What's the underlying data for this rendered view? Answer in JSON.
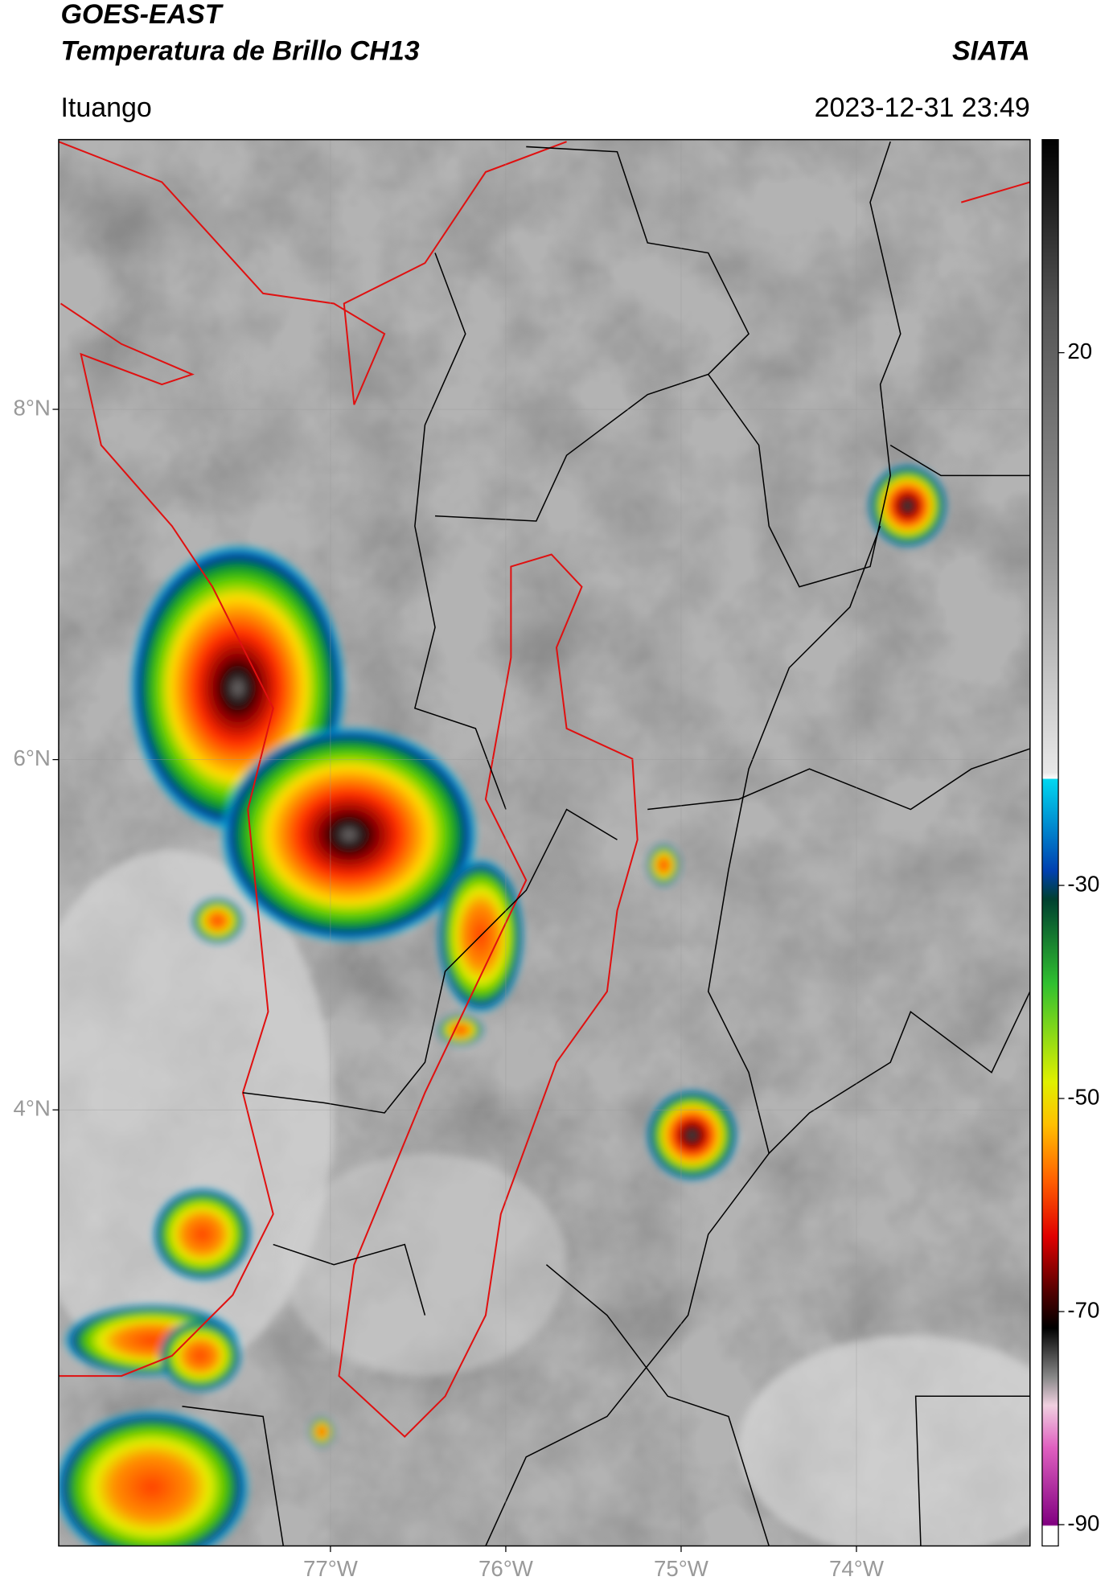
{
  "header": {
    "title": "GOES-EAST",
    "subtitle": "Temperatura de Brillo CH13",
    "credit": "SIATA",
    "region": "Ituango",
    "timestamp": "2023-12-31 23:49"
  },
  "map": {
    "lat_range": [
      1.51,
      9.54
    ],
    "lon_range": [
      -78.55,
      -73.01
    ],
    "lat_ticks": [
      {
        "value": 8,
        "label": "8°N"
      },
      {
        "value": 6,
        "label": "6°N"
      },
      {
        "value": 4,
        "label": "4°N"
      }
    ],
    "lon_ticks": [
      {
        "value": -77,
        "label": "77°W"
      },
      {
        "value": -76,
        "label": "76°W"
      },
      {
        "value": -75,
        "label": "75°W"
      },
      {
        "value": -74,
        "label": "74°W"
      }
    ]
  },
  "colorbar": {
    "range": [
      -92,
      40
    ],
    "ticks": [
      20,
      -30,
      -50,
      -70,
      -90
    ]
  }
}
